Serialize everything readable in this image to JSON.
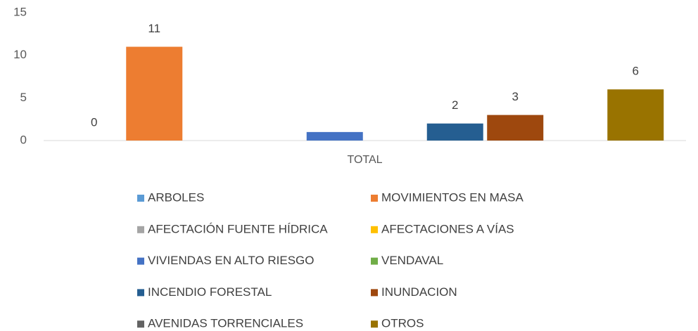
{
  "chart_data": {
    "type": "bar",
    "categories": [
      "TOTAL"
    ],
    "series": [
      {
        "name": "ARBOLES",
        "color": "#5b9bd5",
        "values": [
          0
        ],
        "data_labels": true
      },
      {
        "name": "MOVIMIENTOS EN MASA",
        "color": "#ed7d31",
        "values": [
          11
        ],
        "data_labels": true
      },
      {
        "name": "AFECTACIÓN FUENTE HÍDRICA",
        "color": "#a5a5a5",
        "values": [
          0
        ],
        "data_labels": false
      },
      {
        "name": "AFECTACIONES A VÍAS",
        "color": "#ffc000",
        "values": [
          0
        ],
        "data_labels": false
      },
      {
        "name": "VIVIENDAS EN ALTO RIESGO",
        "color": "#4472c4",
        "values": [
          1
        ],
        "data_labels": false
      },
      {
        "name": "VENDAVAL",
        "color": "#70ad47",
        "values": [
          0
        ],
        "data_labels": false
      },
      {
        "name": "INCENDIO FORESTAL",
        "color": "#255e91",
        "values": [
          2
        ],
        "data_labels": true
      },
      {
        "name": "INUNDACION",
        "color": "#9e480e",
        "values": [
          3
        ],
        "data_labels": true
      },
      {
        "name": "AVENIDAS TORRENCIALES",
        "color": "#636363",
        "values": [
          0
        ],
        "data_labels": false
      },
      {
        "name": "OTROS",
        "color": "#997300",
        "values": [
          6
        ],
        "data_labels": true
      }
    ],
    "ylim": [
      0,
      15
    ],
    "yticks": [
      0,
      5,
      10,
      15
    ],
    "grid": false,
    "legend": "bottom"
  }
}
